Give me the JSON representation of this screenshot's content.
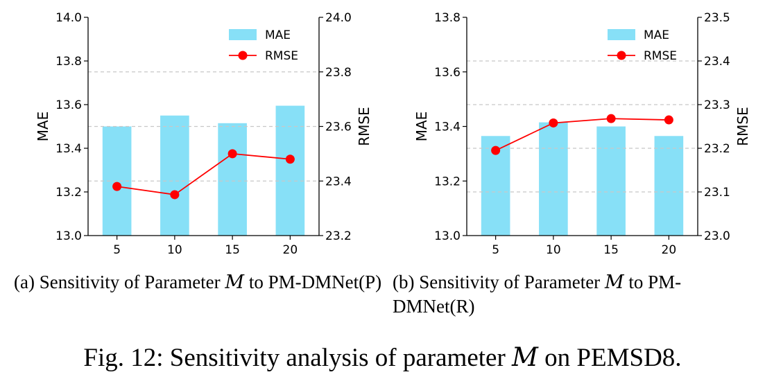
{
  "chart_data": [
    {
      "type": "bar+line",
      "categories": [
        "5",
        "10",
        "15",
        "20"
      ],
      "series": [
        {
          "name": "MAE",
          "axis": "left",
          "kind": "bar",
          "color": "#87e0f7",
          "values": [
            13.5,
            13.55,
            13.515,
            13.595
          ]
        },
        {
          "name": "RMSE",
          "axis": "right",
          "kind": "line",
          "color": "#ff0000",
          "values": [
            23.38,
            23.35,
            23.5,
            23.48
          ]
        }
      ],
      "ylabel": "MAE",
      "y2label": "RMSE",
      "ylim": [
        13.0,
        14.0
      ],
      "y2lim": [
        23.2,
        24.0
      ],
      "yticks": [
        "13.0",
        "13.2",
        "13.4",
        "13.6",
        "13.8",
        "14.0"
      ],
      "y2ticks": [
        "23.2",
        "23.4",
        "23.6",
        "23.8",
        "24.0"
      ],
      "grid": "dashed-horizontal",
      "legend": "top-right"
    },
    {
      "type": "bar+line",
      "categories": [
        "5",
        "10",
        "15",
        "20"
      ],
      "series": [
        {
          "name": "MAE",
          "axis": "left",
          "kind": "bar",
          "color": "#87e0f7",
          "values": [
            13.365,
            13.415,
            13.4,
            13.365
          ]
        },
        {
          "name": "RMSE",
          "axis": "right",
          "kind": "line",
          "color": "#ff0000",
          "values": [
            23.195,
            23.258,
            23.268,
            23.265
          ]
        }
      ],
      "ylabel": "MAE",
      "y2label": "RMSE",
      "ylim": [
        13.0,
        13.8
      ],
      "y2lim": [
        23.0,
        23.5
      ],
      "yticks": [
        "13.0",
        "13.2",
        "13.4",
        "13.6",
        "13.8"
      ],
      "y2ticks": [
        "23.0",
        "23.1",
        "23.2",
        "23.3",
        "23.4",
        "23.5"
      ],
      "grid": "dashed-horizontal",
      "legend": "top-right"
    }
  ],
  "captions": {
    "a_prefix": "(a) Sensitivity of Parameter ",
    "a_var": "M",
    "a_suffix": " to PM-DMNet(P)",
    "b_prefix": "(b) Sensitivity of Parameter ",
    "b_var": "M",
    "b_suffix": " to PM-DMNet(R)",
    "figure_prefix": "Fig. 12: Sensitivity analysis of parameter ",
    "figure_var": "M",
    "figure_suffix": " on PEMSD8."
  }
}
